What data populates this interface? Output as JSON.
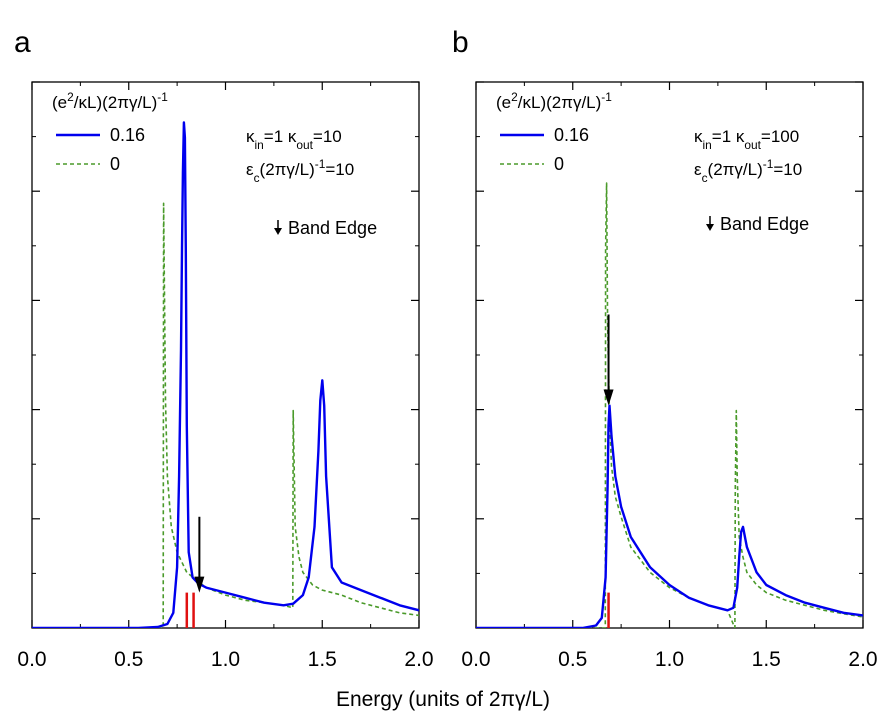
{
  "figure": {
    "xlabel_parts": [
      "Energy (units of 2",
      "πγ",
      "/L)"
    ]
  },
  "chart_data": [
    {
      "type": "line",
      "panel_label": "a",
      "xlim": [
        0,
        2.0
      ],
      "x_ticks": [
        0.0,
        0.5,
        1.0,
        1.5,
        2.0
      ],
      "x_tick_labels": [
        "0.0",
        "0.5",
        "1.0",
        "1.5",
        "2.0"
      ],
      "ylim": [
        0,
        1.08
      ],
      "y_tick_labels": [],
      "legend_title_parts": [
        "(e",
        "2",
        "/",
        "κ",
        "L)(2",
        "πγ",
        "/L)",
        "-1"
      ],
      "param_parts": [
        "κ",
        "in",
        "=1  ",
        "κ",
        "out",
        "=10"
      ],
      "param2_parts": [
        "ε",
        "c",
        "(2",
        "πγ",
        "/L)",
        "-1",
        "=10"
      ],
      "band_edge_label": "Band Edge",
      "series": [
        {
          "name": "0.16",
          "color": "#0000ee",
          "dash": "solid",
          "x": [
            0.0,
            0.55,
            0.65,
            0.7,
            0.73,
            0.75,
            0.76,
            0.77,
            0.775,
            0.78,
            0.785,
            0.79,
            0.795,
            0.8,
            0.81,
            0.83,
            0.86,
            0.9,
            1.0,
            1.1,
            1.2,
            1.3,
            1.35,
            1.4,
            1.43,
            1.46,
            1.48,
            1.49,
            1.5,
            1.51,
            1.52,
            1.55,
            1.6,
            1.7,
            1.8,
            1.9,
            2.0
          ],
          "y": [
            0,
            0,
            0.002,
            0.008,
            0.03,
            0.12,
            0.3,
            0.55,
            0.75,
            0.9,
            1.0,
            0.97,
            0.75,
            0.4,
            0.15,
            0.1,
            0.088,
            0.08,
            0.07,
            0.06,
            0.05,
            0.045,
            0.048,
            0.065,
            0.1,
            0.2,
            0.35,
            0.45,
            0.49,
            0.44,
            0.3,
            0.12,
            0.09,
            0.075,
            0.06,
            0.045,
            0.035
          ]
        },
        {
          "name": "0",
          "color": "#4a9a2a",
          "dash": "dashed",
          "x": [
            0.0,
            0.5,
            0.6,
            0.678,
            0.68,
            0.69,
            0.7,
            0.72,
            0.75,
            0.8,
            0.9,
            1.0,
            1.1,
            1.2,
            1.3,
            1.348,
            1.35,
            1.36,
            1.38,
            1.4,
            1.45,
            1.5,
            1.6,
            1.7,
            1.8,
            1.9,
            2.0
          ],
          "y": [
            0,
            0,
            0,
            0,
            0.84,
            0.45,
            0.3,
            0.2,
            0.15,
            0.11,
            0.08,
            0.065,
            0.055,
            0.05,
            0.045,
            0.04,
            0.43,
            0.2,
            0.14,
            0.11,
            0.085,
            0.075,
            0.065,
            0.05,
            0.04,
            0.03,
            0.025
          ]
        }
      ],
      "red_marks_x": [
        0.8,
        0.835
      ],
      "red_mark_height": 0.07,
      "arrow_x": 0.865,
      "arrow_y_top": 0.22,
      "arrow_y_tip": 0.07
    },
    {
      "type": "line",
      "panel_label": "b",
      "xlim": [
        0,
        2.0
      ],
      "x_ticks": [
        0.0,
        0.5,
        1.0,
        1.5,
        2.0
      ],
      "x_tick_labels": [
        "0.0",
        "0.5",
        "1.0",
        "1.5",
        "2.0"
      ],
      "ylim": [
        0,
        1.08
      ],
      "y_tick_labels": [],
      "legend_title_parts": [
        "(e",
        "2",
        "/",
        "κ",
        "L)(2",
        "πγ",
        "/L)",
        "-1"
      ],
      "param_parts": [
        "κ",
        "in",
        "=1  ",
        "κ",
        "out",
        "=100"
      ],
      "param2_parts": [
        "ε",
        "c",
        "(2",
        "πγ",
        "/L)",
        "-1",
        "=10"
      ],
      "band_edge_label": "Band Edge",
      "series": [
        {
          "name": "0.16",
          "color": "#0000ee",
          "dash": "solid",
          "x": [
            0.0,
            0.55,
            0.62,
            0.65,
            0.67,
            0.68,
            0.685,
            0.69,
            0.7,
            0.72,
            0.75,
            0.8,
            0.9,
            1.0,
            1.1,
            1.2,
            1.3,
            1.33,
            1.35,
            1.36,
            1.37,
            1.38,
            1.4,
            1.45,
            1.5,
            1.6,
            1.7,
            1.8,
            1.9,
            2.0
          ],
          "y": [
            0,
            0,
            0.005,
            0.02,
            0.1,
            0.28,
            0.4,
            0.44,
            0.38,
            0.3,
            0.24,
            0.18,
            0.12,
            0.085,
            0.06,
            0.045,
            0.035,
            0.04,
            0.08,
            0.14,
            0.19,
            0.2,
            0.16,
            0.11,
            0.085,
            0.065,
            0.05,
            0.04,
            0.03,
            0.025
          ]
        },
        {
          "name": "0",
          "color": "#4a9a2a",
          "dash": "dashed",
          "x": [
            0.0,
            0.5,
            0.6,
            0.668,
            0.67,
            0.675,
            0.68,
            0.69,
            0.7,
            0.72,
            0.75,
            0.8,
            0.9,
            1.0,
            1.1,
            1.2,
            1.3,
            1.338,
            1.34,
            1.345,
            1.35,
            1.36,
            1.38,
            1.4,
            1.45,
            1.5,
            1.6,
            1.7,
            1.8,
            1.9,
            2.0
          ],
          "y": [
            0,
            0,
            0,
            0,
            0.75,
            0.88,
            0.6,
            0.42,
            0.32,
            0.26,
            0.22,
            0.16,
            0.11,
            0.08,
            0.06,
            0.045,
            0.035,
            0.0,
            0.28,
            0.43,
            0.3,
            0.18,
            0.14,
            0.11,
            0.085,
            0.07,
            0.055,
            0.045,
            0.035,
            0.028,
            0.022
          ]
        }
      ],
      "red_marks_x": [
        0.685
      ],
      "red_mark_height": 0.07,
      "arrow_x": 0.685,
      "arrow_y_top": 0.62,
      "arrow_y_tip": 0.44
    }
  ]
}
